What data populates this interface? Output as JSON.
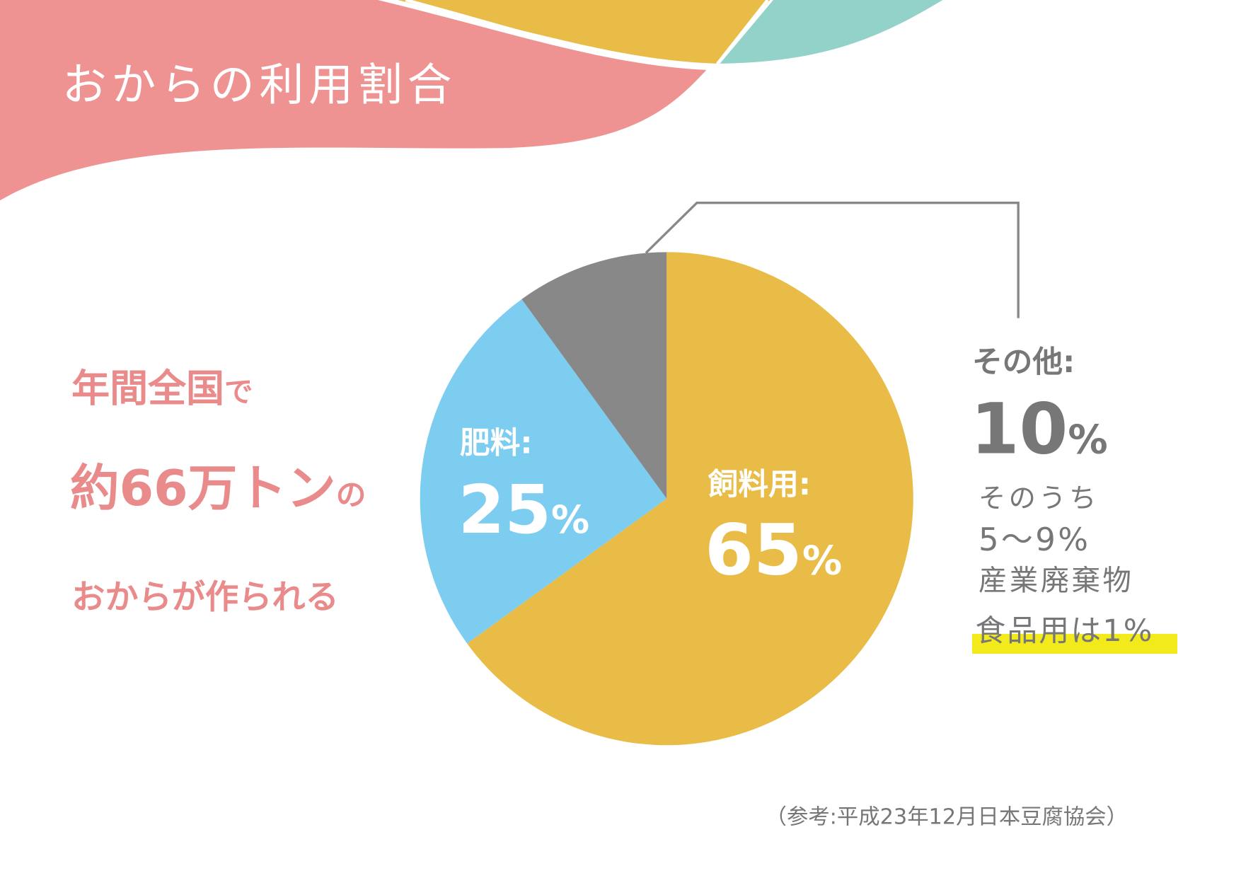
{
  "title": "おからの利用割合",
  "headline": {
    "line1_main": "年間全国",
    "line1_suffix": "で",
    "line2_main": "約66万トン",
    "line2_suffix": "の",
    "line3_main": "おからが作られる"
  },
  "colors": {
    "pink": "#EE9392",
    "yellow": "#E8BC47",
    "teal": "#93D2C9",
    "blue": "#7DCDF1",
    "grey": "#888888",
    "highlight": "#F2EA1A",
    "headline_text": "#E98A8B"
  },
  "chart_data": {
    "type": "pie",
    "start": "top",
    "direction": "clockwise",
    "slices": [
      {
        "label": "飼料用:",
        "value": 65,
        "display": "65",
        "unit": "%",
        "color": "#E8BC47"
      },
      {
        "label": "肥料:",
        "value": 25,
        "display": "25",
        "unit": "%",
        "color": "#7DCDF1"
      },
      {
        "label": "その他:",
        "value": 10,
        "display": "10",
        "unit": "%",
        "color": "#888888"
      }
    ]
  },
  "other_breakdown": {
    "line1": "そのうち",
    "line2": "5～9%",
    "line3": "産業廃棄物",
    "line4": "食品用は1%"
  },
  "source": "（参考:平成23年12月日本豆腐協会）"
}
